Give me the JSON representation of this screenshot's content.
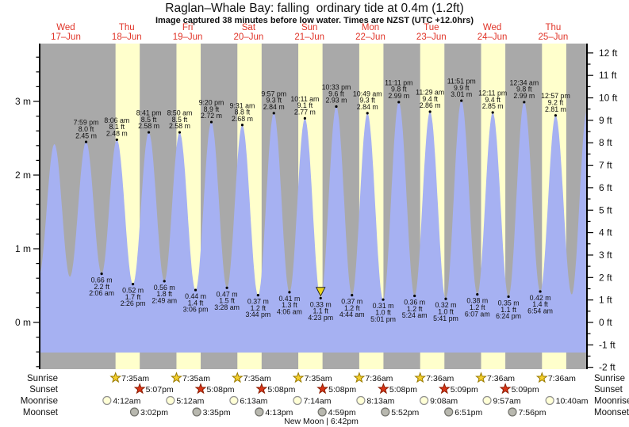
{
  "title": "Raglan–Whale Bay: falling  ordinary tide at 0.4m (1.2ft)",
  "subtitle": "Image captured 38 minutes before low water. Times are NZST (UTC +12.0hrs)",
  "days": [
    {
      "name": "Wed",
      "date": "17–Jun"
    },
    {
      "name": "Thu",
      "date": "18–Jun"
    },
    {
      "name": "Fri",
      "date": "19–Jun"
    },
    {
      "name": "Sat",
      "date": "20–Jun"
    },
    {
      "name": "Sun",
      "date": "21–Jun"
    },
    {
      "name": "Mon",
      "date": "22–Jun"
    },
    {
      "name": "Tue",
      "date": "23–Jun"
    },
    {
      "name": "Wed",
      "date": "24–Jun"
    },
    {
      "name": "Thu",
      "date": "25–Jun"
    }
  ],
  "chart_data": {
    "type": "area",
    "title": "Raglan–Whale Bay tide heights",
    "ylabel_left_unit": "m",
    "ylabel_right_unit": "ft",
    "y_axis_left_labels": [
      "0 m",
      "1 m",
      "2 m",
      "3 m"
    ],
    "y_axis_right_labels": [
      "12 ft",
      "11 ft",
      "10 ft",
      "9 ft",
      "8 ft",
      "7 ft",
      "6 ft",
      "5 ft",
      "4 ft",
      "3 ft",
      "2 ft",
      "1 ft",
      "0 ft",
      "-1 ft",
      "-2 ft"
    ],
    "ylim_m": [
      -0.63,
      3.8
    ],
    "ylim_ft": [
      -2,
      12
    ],
    "grid": false,
    "high_tides": [
      {
        "day": 0,
        "time": "7:59 pm",
        "ft": "8.0 ft",
        "m": "2.45 m"
      },
      {
        "day": 1,
        "time": "8:06 am",
        "ft": "8.1 ft",
        "m": "2.48 m"
      },
      {
        "day": 1,
        "time": "8:41 pm",
        "ft": "8.5 ft",
        "m": "2.58 m"
      },
      {
        "day": 2,
        "time": "8:50 am",
        "ft": "8.5 ft",
        "m": "2.58 m"
      },
      {
        "day": 2,
        "time": "9:20 pm",
        "ft": "8.9 ft",
        "m": "2.72 m"
      },
      {
        "day": 3,
        "time": "9:31 am",
        "ft": "8.8 ft",
        "m": "2.68 m"
      },
      {
        "day": 3,
        "time": "9:57 pm",
        "ft": "9.3 ft",
        "m": "2.84 m"
      },
      {
        "day": 4,
        "time": "10:11 am",
        "ft": "9.1 ft",
        "m": "2.77 m"
      },
      {
        "day": 4,
        "time": "10:33 pm",
        "ft": "9.6 ft",
        "m": "2.93 m"
      },
      {
        "day": 5,
        "time": "10:49 am",
        "ft": "9.3 ft",
        "m": "2.84 m"
      },
      {
        "day": 5,
        "time": "11:11 pm",
        "ft": "9.8 ft",
        "m": "2.99 m"
      },
      {
        "day": 6,
        "time": "11:29 am",
        "ft": "9.4 ft",
        "m": "2.86 m"
      },
      {
        "day": 6,
        "time": "11:51 pm",
        "ft": "9.9 ft",
        "m": "3.01 m"
      },
      {
        "day": 7,
        "time": "12:11 pm",
        "ft": "9.4 ft",
        "m": "2.85 m"
      },
      {
        "day": 8,
        "time": "12:34 am",
        "ft": "9.8 ft",
        "m": "2.99 m"
      },
      {
        "day": 8,
        "time": "12:57 pm",
        "ft": "9.2 ft",
        "m": "2.81 m"
      }
    ],
    "low_tides": [
      {
        "day": 1,
        "time": "2:06 am",
        "ft": "2.2 ft",
        "m": "0.66 m"
      },
      {
        "day": 1,
        "time": "2:26 pm",
        "ft": "1.7 ft",
        "m": "0.52 m"
      },
      {
        "day": 2,
        "time": "2:49 am",
        "ft": "1.8 ft",
        "m": "0.56 m"
      },
      {
        "day": 2,
        "time": "3:06 pm",
        "ft": "1.4 ft",
        "m": "0.44 m"
      },
      {
        "day": 3,
        "time": "3:28 am",
        "ft": "1.5 ft",
        "m": "0.47 m"
      },
      {
        "day": 3,
        "time": "3:44 pm",
        "ft": "1.2 ft",
        "m": "0.37 m"
      },
      {
        "day": 4,
        "time": "4:06 am",
        "ft": "1.3 ft",
        "m": "0.41 m"
      },
      {
        "day": 4,
        "time": "4:23 pm",
        "ft": "1.1 ft",
        "m": "0.33 m",
        "current": true
      },
      {
        "day": 5,
        "time": "4:44 am",
        "ft": "1.2 ft",
        "m": "0.37 m"
      },
      {
        "day": 5,
        "time": "5:01 pm",
        "ft": "1.0 ft",
        "m": "0.31 m"
      },
      {
        "day": 6,
        "time": "5:24 am",
        "ft": "1.2 ft",
        "m": "0.36 m"
      },
      {
        "day": 6,
        "time": "5:41 pm",
        "ft": "1.0 ft",
        "m": "0.32 m"
      },
      {
        "day": 7,
        "time": "6:07 am",
        "ft": "1.2 ft",
        "m": "0.38 m"
      },
      {
        "day": 7,
        "time": "6:24 pm",
        "ft": "1.1 ft",
        "m": "0.35 m"
      },
      {
        "day": 8,
        "time": "6:54 am",
        "ft": "1.4 ft",
        "m": "0.42 m"
      }
    ],
    "edge_extremes_estimated": [
      {
        "day": 0,
        "hour": 1.3,
        "m": 0.62
      },
      {
        "day": 0,
        "hour": 7.5,
        "m": 2.42
      },
      {
        "day": 0,
        "hour": 13.6,
        "m": 0.62
      },
      {
        "day": 8,
        "hour": 19.3,
        "m": 0.38
      },
      {
        "day": 8,
        "hour": 25.4,
        "m": 2.9
      }
    ],
    "current_marker": {
      "on_low_tide_time": "4:23 pm"
    }
  },
  "astro": {
    "rows": [
      {
        "label": "Sunrise",
        "icon": "sunrise-star",
        "entries": [
          {
            "day": 1,
            "time": "7:35am"
          },
          {
            "day": 2,
            "time": "7:35am"
          },
          {
            "day": 3,
            "time": "7:35am"
          },
          {
            "day": 4,
            "time": "7:35am"
          },
          {
            "day": 5,
            "time": "7:36am"
          },
          {
            "day": 6,
            "time": "7:36am"
          },
          {
            "day": 7,
            "time": "7:36am"
          },
          {
            "day": 8,
            "time": "7:36am"
          }
        ]
      },
      {
        "label": "Sunset",
        "icon": "sunset-star",
        "entries": [
          {
            "day": 1,
            "time": "5:07pm"
          },
          {
            "day": 2,
            "time": "5:08pm"
          },
          {
            "day": 3,
            "time": "5:08pm"
          },
          {
            "day": 4,
            "time": "5:08pm"
          },
          {
            "day": 5,
            "time": "5:08pm"
          },
          {
            "day": 6,
            "time": "5:09pm"
          },
          {
            "day": 7,
            "time": "5:09pm"
          }
        ]
      },
      {
        "label": "Moonrise",
        "icon": "moonrise-circle",
        "entries": [
          {
            "day": 1,
            "time": "4:12am"
          },
          {
            "day": 2,
            "time": "5:12am"
          },
          {
            "day": 3,
            "time": "6:13am"
          },
          {
            "day": 4,
            "time": "7:14am"
          },
          {
            "day": 5,
            "time": "8:13am"
          },
          {
            "day": 6,
            "time": "9:08am"
          },
          {
            "day": 7,
            "time": "9:57am"
          },
          {
            "day": 8,
            "time": "10:40am"
          }
        ]
      },
      {
        "label": "Moonset",
        "icon": "moonset-circle",
        "entries": [
          {
            "day": 1,
            "time": "3:02pm"
          },
          {
            "day": 2,
            "time": "3:35pm"
          },
          {
            "day": 3,
            "time": "4:13pm"
          },
          {
            "day": 4,
            "time": "4:59pm"
          },
          {
            "day": 5,
            "time": "5:52pm"
          },
          {
            "day": 6,
            "time": "6:51pm"
          },
          {
            "day": 7,
            "time": "7:56pm"
          }
        ]
      }
    ],
    "new_moon": {
      "label": "New Moon",
      "time": "6:42pm"
    }
  },
  "colors": {
    "night_band": "#a9a9a9",
    "day_band": "#ffffcc",
    "tide_fill": "#a6b1f2",
    "date_label_red": "#e03428",
    "marker_yellow": "#ecd51e",
    "sunrise_star": "#f4cf2d",
    "sunset_star": "#d93418",
    "moonrise_fill": "#ffffd6",
    "moonset_fill": "#b8b8af",
    "text": "#111111"
  }
}
